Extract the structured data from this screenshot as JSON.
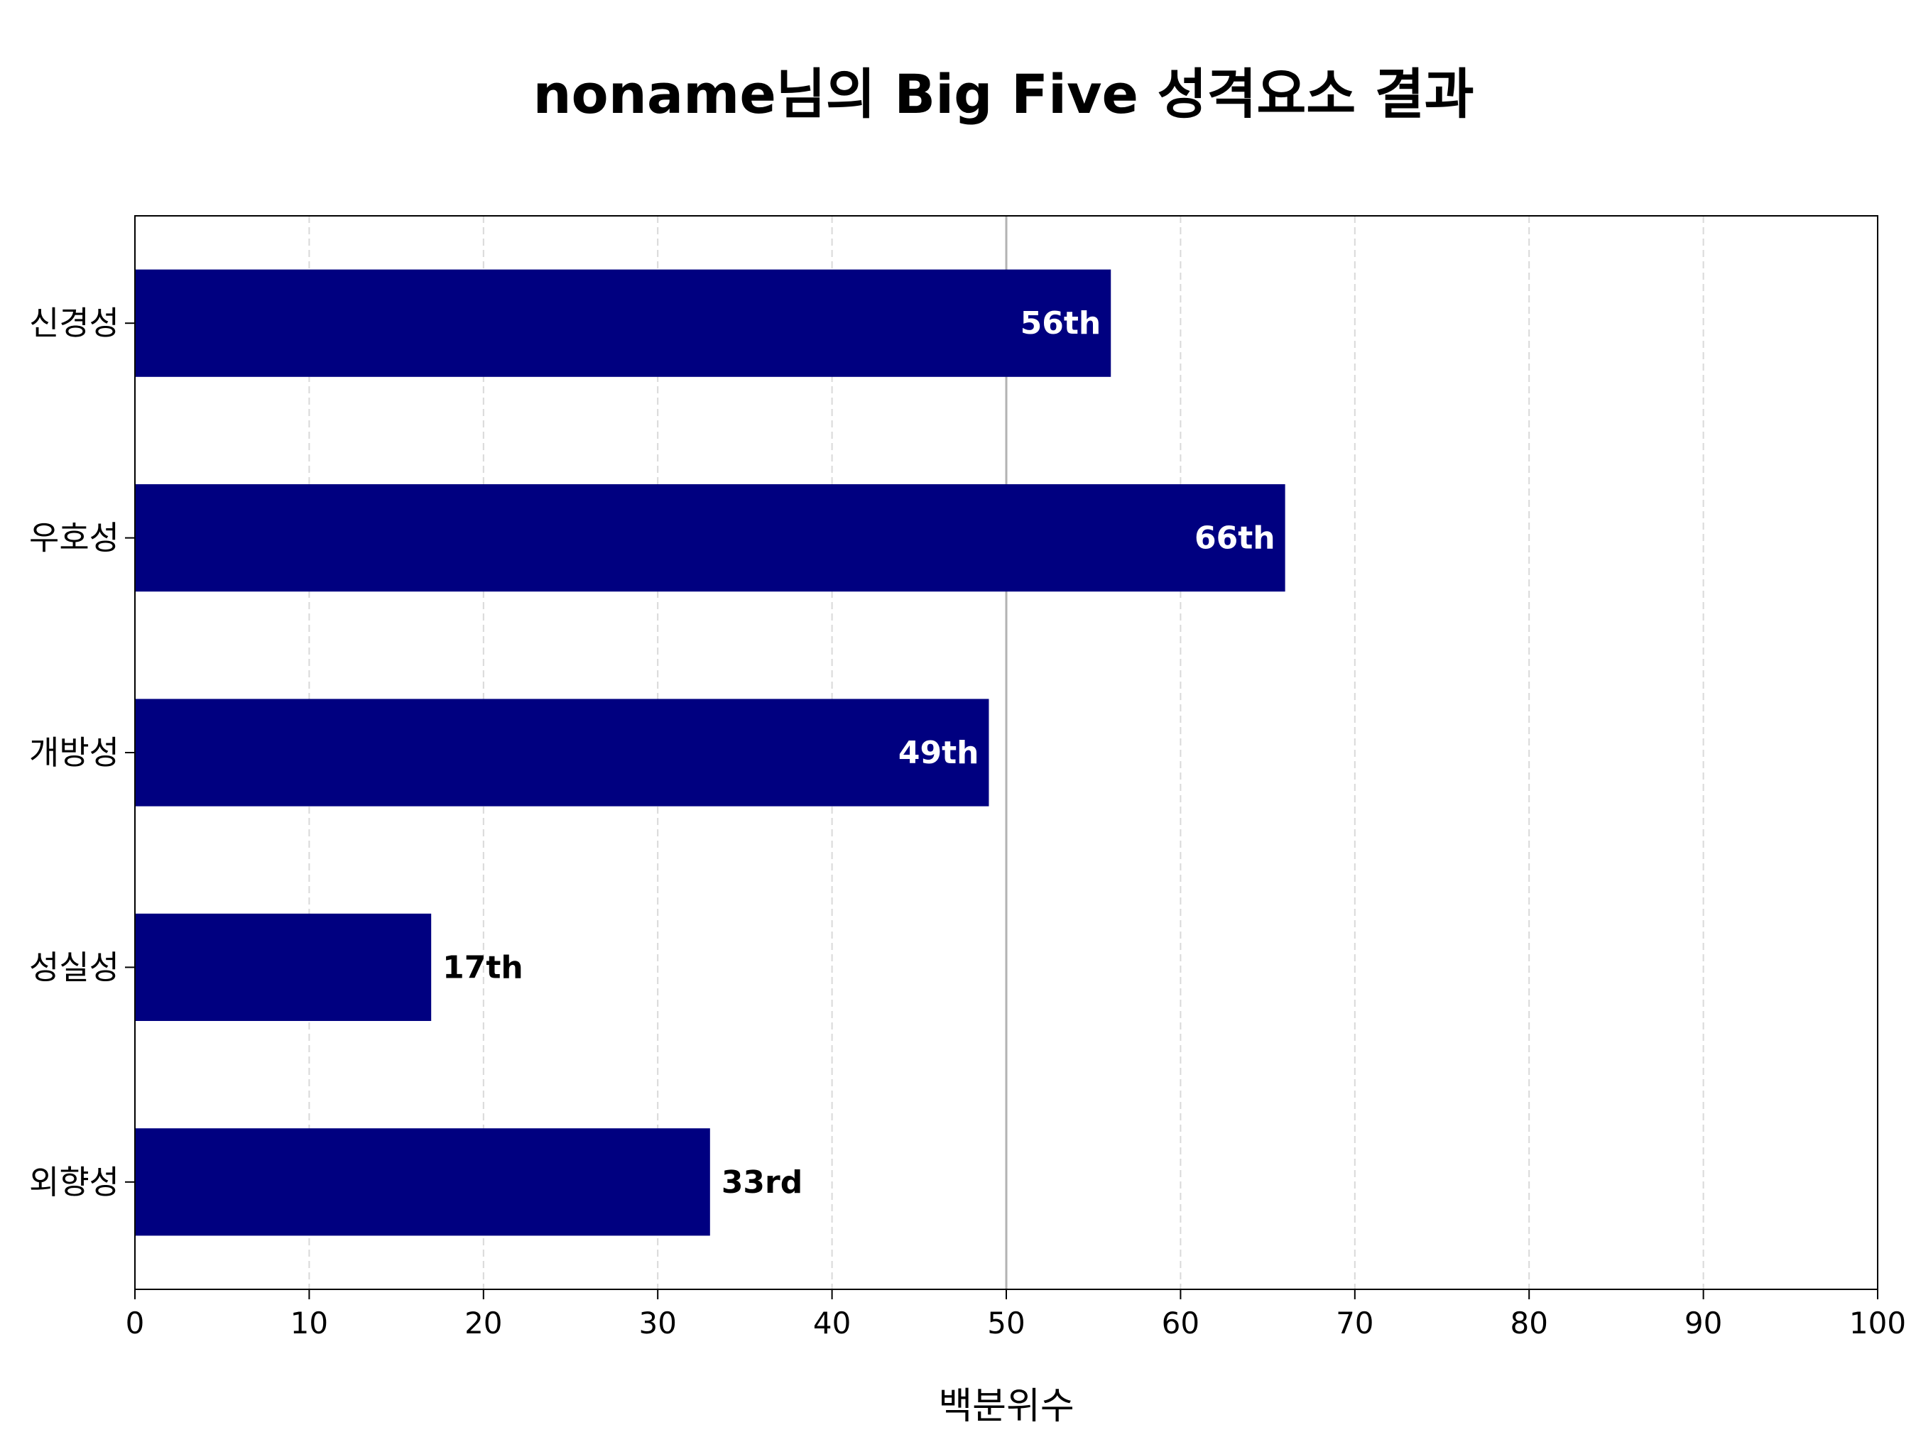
{
  "chart_data": {
    "type": "bar",
    "orientation": "horizontal",
    "title": "noname님의 Big Five 성격요소 결과",
    "xlabel": "백분위수",
    "ylabel": "",
    "xlim": [
      0,
      100
    ],
    "x_ticks": [
      "0",
      "10",
      "20",
      "30",
      "40",
      "50",
      "60",
      "70",
      "80",
      "90",
      "100"
    ],
    "categories": [
      "신경성",
      "우호성",
      "개방성",
      "성실성",
      "외향성"
    ],
    "values": [
      56,
      66,
      49,
      17,
      33
    ],
    "value_labels": [
      "56th",
      "66th",
      "49th",
      "17th",
      "33rd"
    ],
    "reference_line": 50,
    "grid": "vertical dashed",
    "legend": "none",
    "colors": {
      "bar": "#000080",
      "label_inside": "#ffffff",
      "label_outside": "#000000",
      "grid": "#d9d9d9",
      "reference": "#b3b3b3"
    }
  }
}
